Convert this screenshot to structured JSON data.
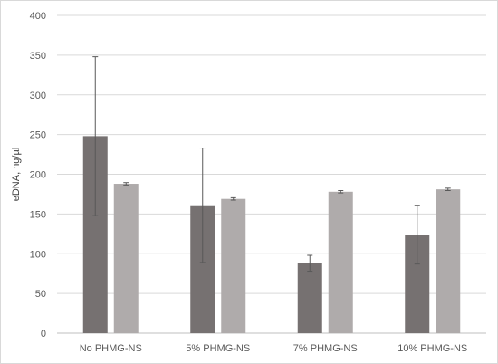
{
  "chart_data": {
    "type": "bar",
    "categories": [
      "No PHMG-NS",
      "5% PHMG-NS",
      "7% PHMG-NS",
      "10% PHMG-NS"
    ],
    "series": [
      {
        "values": [
          248,
          161,
          88,
          124
        ],
        "error": [
          100,
          72,
          10,
          37
        ],
        "color": "#767171"
      },
      {
        "values": [
          188,
          169,
          178,
          181
        ],
        "error": [
          1.5,
          1.5,
          1.5,
          1.5
        ],
        "color": "#afabab"
      }
    ],
    "ylabel": "eDNA, ng/µl",
    "xlabel": "",
    "title": "",
    "ylim": [
      0,
      400
    ],
    "yticks": [
      0,
      50,
      100,
      150,
      200,
      250,
      300,
      350,
      400
    ],
    "grid": true,
    "legend": "none",
    "gridline_color": "#d9d9d9",
    "errorbar_color": "#595959"
  }
}
